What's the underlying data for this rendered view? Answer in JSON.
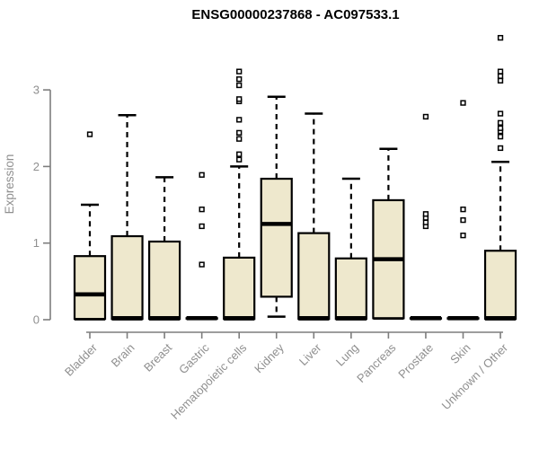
{
  "chart_data": {
    "type": "boxplot",
    "title": "ENSG00000237868 - AC097533.1",
    "ylabel": "Expression",
    "xlabel": "",
    "yticks": [
      0,
      1,
      2,
      3
    ],
    "ylim": [
      0,
      3.8
    ],
    "grid": false,
    "legend": "none",
    "colors": {
      "box_fill": "#EEE8CD",
      "box_stroke": "#000000",
      "median": "#000000",
      "outlier_stroke": "#000000",
      "outlier_fill": "#ffffff",
      "axis_line": "#7d7d7d",
      "axis_text": "#8f8f8f",
      "title": "#000000",
      "background": "#ffffff"
    },
    "categories": [
      "Bladder",
      "Brain",
      "Breast",
      "Gastric",
      "Hematopoietic cells",
      "Kidney",
      "Liver",
      "Lung",
      "Pancreas",
      "Prostate",
      "Skin",
      "Unknown / Other"
    ],
    "boxes": [
      {
        "category": "Bladder",
        "whisker_low": 0.01,
        "q1": 0.01,
        "median": 0.33,
        "q3": 0.83,
        "whisker_high": 1.5,
        "outliers": [
          2.42
        ]
      },
      {
        "category": "Brain",
        "whisker_low": 0.01,
        "q1": 0.01,
        "median": 0.02,
        "q3": 1.09,
        "whisker_high": 2.67,
        "outliers": []
      },
      {
        "category": "Breast",
        "whisker_low": 0.01,
        "q1": 0.01,
        "median": 0.02,
        "q3": 1.02,
        "whisker_high": 1.86,
        "outliers": []
      },
      {
        "category": "Gastric",
        "whisker_low": 0.02,
        "q1": 0.02,
        "median": 0.02,
        "q3": 0.02,
        "whisker_high": 0.02,
        "outliers": [
          0.72,
          1.22,
          1.44,
          1.89
        ]
      },
      {
        "category": "Hematopoietic cells",
        "whisker_low": 0.01,
        "q1": 0.01,
        "median": 0.02,
        "q3": 0.81,
        "whisker_high": 2.0,
        "outliers": [
          2.09,
          2.16,
          2.36,
          2.44,
          2.61,
          2.85,
          2.88,
          3.06,
          3.14,
          3.24
        ]
      },
      {
        "category": "Kidney",
        "whisker_low": 0.04,
        "q1": 0.3,
        "median": 1.25,
        "q3": 1.84,
        "whisker_high": 2.91,
        "outliers": []
      },
      {
        "category": "Liver",
        "whisker_low": 0.01,
        "q1": 0.01,
        "median": 0.02,
        "q3": 1.13,
        "whisker_high": 2.69,
        "outliers": []
      },
      {
        "category": "Lung",
        "whisker_low": 0.01,
        "q1": 0.01,
        "median": 0.02,
        "q3": 0.8,
        "whisker_high": 1.84,
        "outliers": []
      },
      {
        "category": "Pancreas",
        "whisker_low": 0.02,
        "q1": 0.02,
        "median": 0.79,
        "q3": 1.56,
        "whisker_high": 2.23,
        "outliers": []
      },
      {
        "category": "Prostate",
        "whisker_low": 0.02,
        "q1": 0.02,
        "median": 0.02,
        "q3": 0.02,
        "whisker_high": 0.02,
        "outliers": [
          1.22,
          1.27,
          1.33,
          1.38,
          2.65
        ]
      },
      {
        "category": "Skin",
        "whisker_low": 0.02,
        "q1": 0.02,
        "median": 0.02,
        "q3": 0.02,
        "whisker_high": 0.02,
        "outliers": [
          1.1,
          1.3,
          1.44,
          2.83
        ]
      },
      {
        "category": "Unknown / Other",
        "whisker_low": 0.01,
        "q1": 0.01,
        "median": 0.02,
        "q3": 0.9,
        "whisker_high": 2.06,
        "outliers": [
          2.24,
          2.39,
          2.46,
          2.5,
          2.57,
          2.69,
          3.12,
          3.18,
          3.24,
          3.68
        ]
      }
    ]
  }
}
